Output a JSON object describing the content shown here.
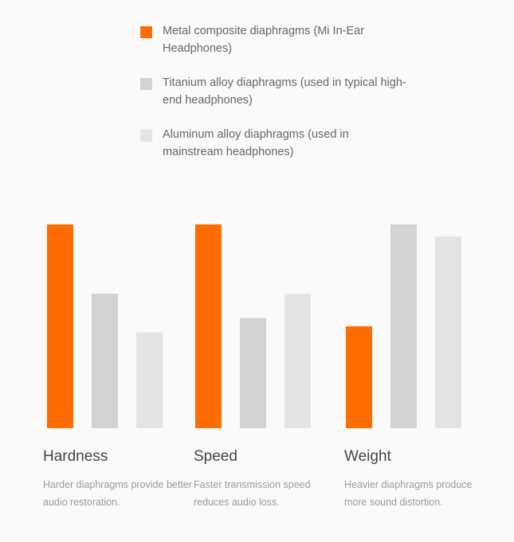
{
  "chart_data": {
    "type": "bar",
    "categories": [
      "Hardness",
      "Speed",
      "Weight"
    ],
    "category_descriptions": [
      "Harder diaphragms provide better audio restoration.",
      "Faster transmission speed reduces audio loss.",
      "Heavier diaphragms produce more sound distortion."
    ],
    "series": [
      {
        "name": "Metal composite diaphragms (Mi In-Ear Headphones)",
        "color": "#ff6c00",
        "values": [
          100,
          100,
          50
        ]
      },
      {
        "name": "Titanium alloy diaphragms (used in typical high-end headphones)",
        "color": "#d2d2d2",
        "values": [
          66,
          54,
          100
        ]
      },
      {
        "name": "Aluminum alloy diaphragms (used in mainstream headphones)",
        "color": "#e4e4e4",
        "values": [
          47,
          66,
          94
        ]
      }
    ],
    "ylim": [
      0,
      100
    ],
    "grid": false,
    "legend_position": "top"
  }
}
